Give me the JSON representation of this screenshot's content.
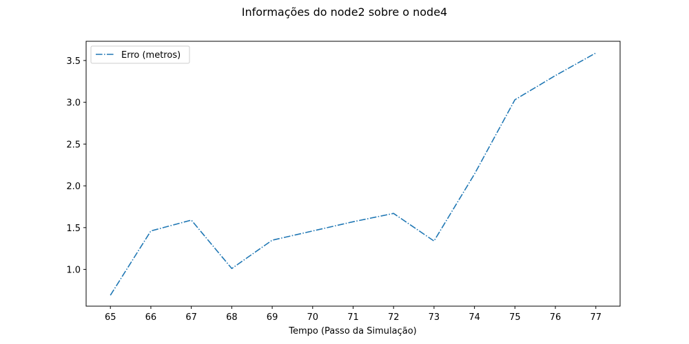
{
  "chart_data": {
    "type": "line",
    "title": "Informações do node2 sobre o node4",
    "xlabel": "Tempo (Passo da Simulação)",
    "ylabel": "",
    "x": [
      65,
      66,
      67,
      68,
      69,
      70,
      71,
      72,
      73,
      74,
      75,
      76,
      77
    ],
    "xlim": [
      64.4,
      77.6
    ],
    "ylim": [
      0.56,
      3.73
    ],
    "x_ticks": [
      "65",
      "66",
      "67",
      "68",
      "69",
      "70",
      "71",
      "72",
      "73",
      "74",
      "75",
      "76",
      "77"
    ],
    "y_ticks": [
      "1.0",
      "1.5",
      "2.0",
      "2.5",
      "3.0",
      "3.5"
    ],
    "grid": false,
    "legend_position": "upper-left",
    "series": [
      {
        "name": "Erro (metros)",
        "color": "#1f77b4",
        "line_style": "dash-dot",
        "values": [
          0.69,
          1.46,
          1.59,
          1.01,
          1.35,
          1.46,
          1.57,
          1.67,
          1.34,
          2.14,
          3.03,
          3.32,
          3.59
        ]
      }
    ]
  }
}
